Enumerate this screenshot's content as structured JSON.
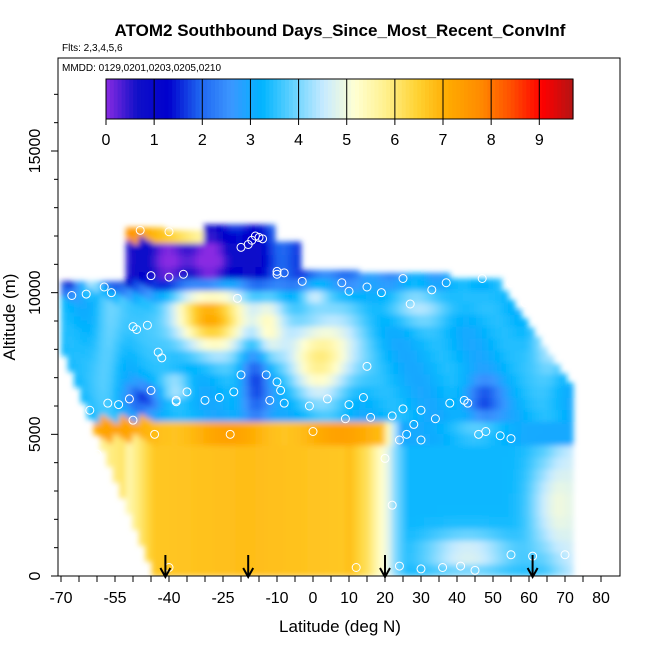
{
  "chart_data": {
    "type": "heatmap",
    "title": "ATOM2 Southbound Days_Since_Most_Recent_ConvInf",
    "subtitle_flights": "Flts: 2,3,4,5,6",
    "subtitle_dates": "MMDD: 0129,0201,0203,0205,0210",
    "xlabel": "Latitude (deg N)",
    "ylabel": "Altitude (m)",
    "xlim": [
      -70,
      80
    ],
    "ylim": [
      0,
      17500
    ],
    "x_tick_labels": [
      "-70",
      "-55",
      "-40",
      "-25",
      "-10",
      "0",
      "10",
      "20",
      "30",
      "40",
      "50",
      "60",
      "70",
      "80"
    ],
    "y_tick_labels": [
      "0",
      "5000",
      "10000",
      "15000"
    ],
    "colorbar": {
      "labels": [
        "0",
        "1",
        "2",
        "3",
        "4",
        "5",
        "6",
        "7",
        "8",
        "9"
      ],
      "range": [
        0,
        9.7
      ],
      "colors": [
        "#8a2be2",
        "#1010c8",
        "#0000cd",
        "#1e64f0",
        "#3c96ff",
        "#00b4ff",
        "#64d2ff",
        "#c8ebff",
        "#ffffd2",
        "#fff08c",
        "#ffd232",
        "#ffaa00",
        "#ff8c00",
        "#ff5000",
        "#ff0000",
        "#b41414"
      ]
    },
    "arrows_latitude": [
      -41,
      -18,
      20,
      61
    ],
    "legend_position": "top",
    "grid": false
  }
}
